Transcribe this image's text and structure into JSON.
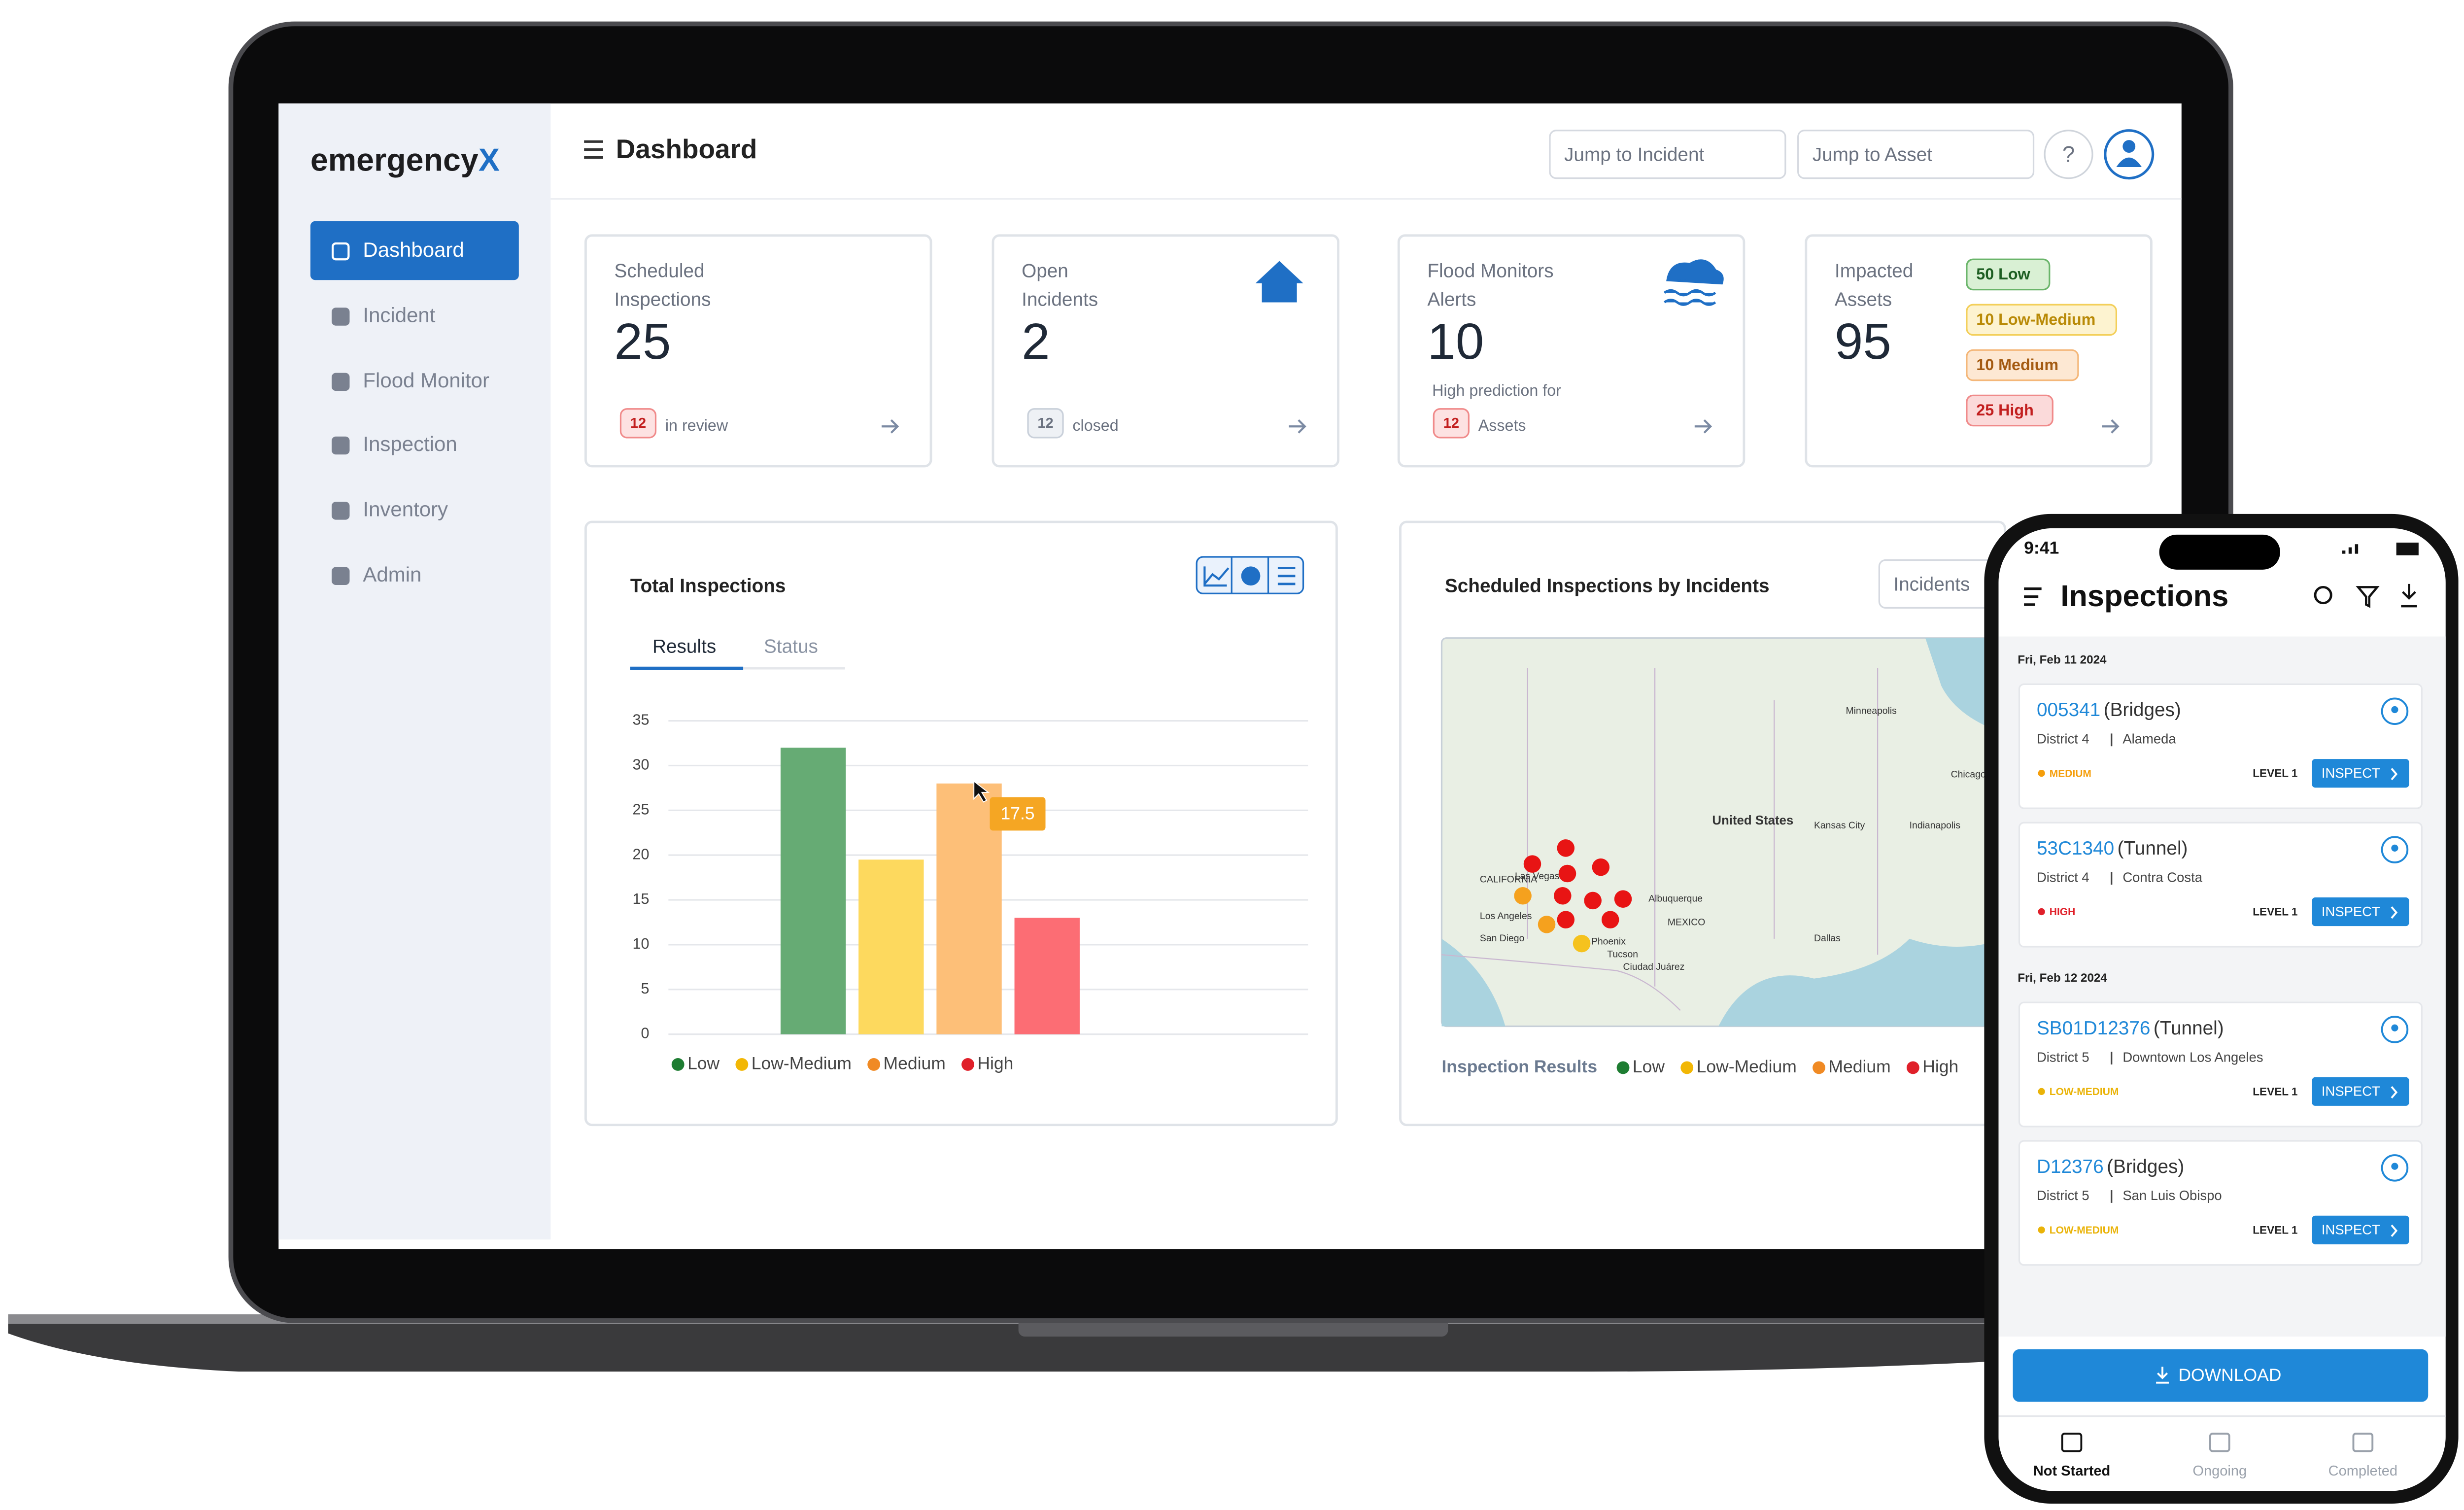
{
  "laptop": {
    "brand": {
      "main": "emergency",
      "accent": "X"
    },
    "nav": [
      "Dashboard",
      "Incident",
      "Flood Monitor",
      "Inspection",
      "Inventory",
      "Admin"
    ],
    "page_title": "Dashboard",
    "search": [
      "Jump to Incident",
      "Jump to Asset"
    ],
    "help": "?",
    "cards": [
      {
        "label_lines": [
          "Scheduled",
          "Inspections"
        ],
        "value": "25",
        "badge": "12",
        "note": "in review"
      },
      {
        "label_lines": [
          "Open",
          "Incidents"
        ],
        "value": "2",
        "badge": "12",
        "note": "closed"
      },
      {
        "label_lines": [
          "Flood Monitors",
          "Alerts"
        ],
        "value": "10",
        "subnote": "High prediction for",
        "badge": "12",
        "note": "Assets"
      },
      {
        "label_lines": [
          "Impacted",
          "Assets"
        ],
        "value": "95",
        "levels": [
          "50 Low",
          "10 Low-Medium",
          "10 Medium",
          "25 High"
        ]
      }
    ],
    "inspection_tabs": [
      "Results",
      "Status"
    ],
    "map_panel": {
      "title": "Scheduled Inspections by Incidents",
      "dropdown": "Incidents",
      "legend_title": "Inspection Results",
      "legend": [
        "Low",
        "Low-Medium",
        "Medium",
        "High"
      ],
      "legend_colors": [
        "#1e7d32",
        "#f2b705",
        "#f08a24",
        "#e0202a"
      ],
      "places": [
        "United States",
        "Minneapolis",
        "Chicago",
        "Kansas City",
        "Indianapolis",
        "Dallas",
        "Albuquerque",
        "Las Vegas",
        "Los Angeles",
        "San Diego",
        "Phoenix",
        "Tucson",
        "Ciudad Juárez",
        "MEXICO",
        "CALIFORNIA"
      ]
    }
  },
  "chart_data": {
    "type": "bar",
    "title": "Total Inspections",
    "categories": [
      "Low",
      "Low-Medium",
      "Medium",
      "High"
    ],
    "values": [
      32,
      19.5,
      28,
      13
    ],
    "colors": [
      "#66ab74",
      "#fdd95e",
      "#fdbf78",
      "#fc6d74"
    ],
    "legend_colors": [
      "#1e7d32",
      "#f2b705",
      "#f08a24",
      "#e0202a"
    ],
    "ylim": [
      0,
      35
    ],
    "yticks": [
      0,
      5,
      10,
      15,
      20,
      25,
      30,
      35
    ],
    "grid": true,
    "tooltip": "17.5"
  },
  "phone": {
    "time": "9:41",
    "title": "Inspections",
    "groups": [
      {
        "date": "Fri, Feb 11 2024",
        "items": [
          {
            "id": "005341",
            "kind": "(Bridges)",
            "district": "District 4",
            "place": "Alameda",
            "risk": "MEDIUM",
            "risk_color": "#f59e0b",
            "level": "LEVEL 1",
            "action": "INSPECT"
          },
          {
            "id": "53C1340",
            "kind": "(Tunnel)",
            "district": "District 4",
            "place": "Contra Costa",
            "risk": "HIGH",
            "risk_color": "#e0202a",
            "level": "LEVEL 1",
            "action": "INSPECT"
          }
        ]
      },
      {
        "date": "Fri, Feb 12 2024",
        "items": [
          {
            "id": "SB01D12376",
            "kind": "(Tunnel)",
            "district": "District 5",
            "place": "Downtown Los Angeles",
            "risk": "LOW-MEDIUM",
            "risk_color": "#eab308",
            "level": "LEVEL 1",
            "action": "INSPECT"
          },
          {
            "id": "D12376",
            "kind": "(Bridges)",
            "district": "District 5",
            "place": "San Luis Obispo",
            "risk": "LOW-MEDIUM",
            "risk_color": "#eab308",
            "level": "LEVEL 1",
            "action": "INSPECT"
          }
        ]
      }
    ],
    "download": "DOWNLOAD",
    "tabs": [
      "Not Started",
      "Ongoing",
      "Completed"
    ]
  }
}
